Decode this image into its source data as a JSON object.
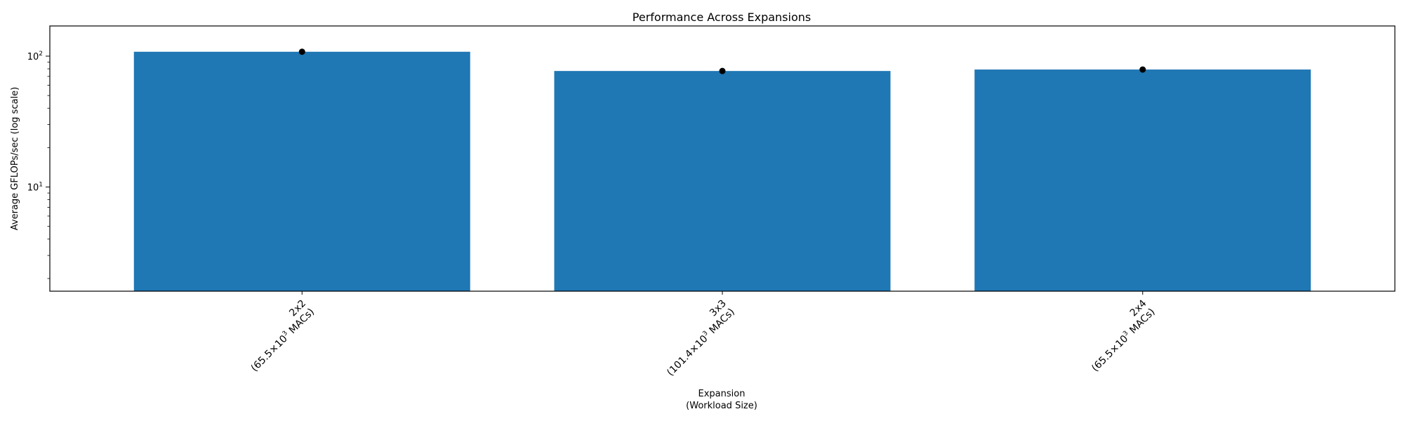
{
  "chart_data": {
    "type": "bar",
    "title": "Performance Across Expansions",
    "xlabel": [
      "Expansion",
      "(Workload Size)"
    ],
    "ylabel": "Average GFLOPs/sec (log scale)",
    "yscale": "log",
    "ylim": [
      1.6,
      170
    ],
    "yticks": [
      {
        "value": 10,
        "base": "10",
        "exp": "1"
      },
      {
        "value": 100,
        "base": "10",
        "exp": "2"
      }
    ],
    "grid": false,
    "bar_color": "#1f77b4",
    "marker_color": "#000000",
    "categories": [
      {
        "line1": "2x2",
        "line2_pre": "(65.5×10",
        "sup": "3",
        "line2_post": " MACs)"
      },
      {
        "line1": "3x3",
        "line2_pre": "(101.4×10",
        "sup": "3",
        "line2_post": " MACs)"
      },
      {
        "line1": "2x4",
        "line2_pre": "(65.5×10",
        "sup": "3",
        "line2_post": " MACs)"
      }
    ],
    "values": [
      108,
      77,
      79
    ]
  }
}
